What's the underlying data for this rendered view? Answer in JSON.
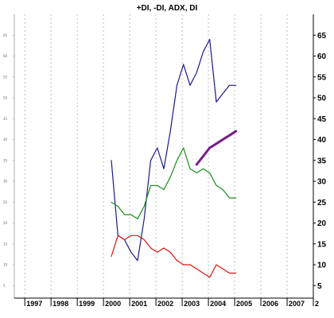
{
  "chart_data": {
    "type": "line",
    "title": "+DI, -DI, ADX, DI",
    "x_tick_labels": [
      "1997",
      "1998",
      "1999",
      "2000",
      "2001",
      "2002",
      "2003",
      "2004",
      "2005",
      "2006",
      "2007",
      "2"
    ],
    "y_ticks_right": [
      "5",
      "10",
      "15",
      "20",
      "25",
      "30",
      "35",
      "40",
      "45",
      "50",
      "55",
      "60",
      "65"
    ],
    "y_ticks_left": [
      "5",
      "10",
      "15",
      "20",
      "25",
      "30",
      "35",
      "40",
      "45",
      "50",
      "55",
      "60",
      "65"
    ],
    "ylim": [
      2,
      70
    ],
    "xlim": [
      1996.6,
      2008.0
    ],
    "grid": true,
    "series": [
      {
        "color": "#1a1a8c",
        "width": 1.2,
        "x": [
          2000.3,
          2000.55,
          2000.8,
          2001.05,
          2001.3,
          2001.55,
          2001.8,
          2002.05,
          2002.3,
          2002.55,
          2002.8,
          2003.05,
          2003.3,
          2003.55,
          2003.8,
          2004.05,
          2004.3,
          2004.55,
          2004.8,
          2005.05
        ],
        "y": [
          35,
          17,
          16,
          13,
          11,
          21,
          35,
          38,
          33,
          42,
          53,
          58,
          53,
          56,
          61,
          64,
          49,
          51,
          53,
          53
        ]
      },
      {
        "color": "#1a8c1a",
        "width": 1.2,
        "x": [
          2000.3,
          2000.55,
          2000.8,
          2001.05,
          2001.3,
          2001.55,
          2001.8,
          2002.05,
          2002.3,
          2002.55,
          2002.8,
          2003.05,
          2003.3,
          2003.55,
          2003.8,
          2004.05,
          2004.3,
          2004.55,
          2004.8,
          2005.05
        ],
        "y": [
          25,
          24,
          22,
          22,
          21,
          24,
          29,
          29,
          28,
          31,
          35,
          38,
          33,
          32,
          33,
          32,
          29,
          28,
          26,
          26
        ]
      },
      {
        "color": "#e01010",
        "width": 1.2,
        "x": [
          2000.3,
          2000.55,
          2000.8,
          2001.05,
          2001.3,
          2001.55,
          2001.8,
          2002.05,
          2002.3,
          2002.55,
          2002.8,
          2003.05,
          2003.3,
          2003.55,
          2003.8,
          2004.05,
          2004.3,
          2004.55,
          2004.8,
          2005.05
        ],
        "y": [
          12,
          17,
          16,
          17,
          17,
          16,
          14,
          13,
          14,
          13,
          11,
          10,
          10,
          9,
          8,
          7,
          10,
          9,
          8,
          8
        ]
      },
      {
        "color": "#7a1a8c",
        "width": 3,
        "x": [
          2003.55,
          2003.8,
          2004.05,
          2004.3,
          2004.55,
          2004.8,
          2005.05
        ],
        "y": [
          34,
          36,
          38,
          39,
          40,
          41,
          42
        ]
      }
    ]
  }
}
